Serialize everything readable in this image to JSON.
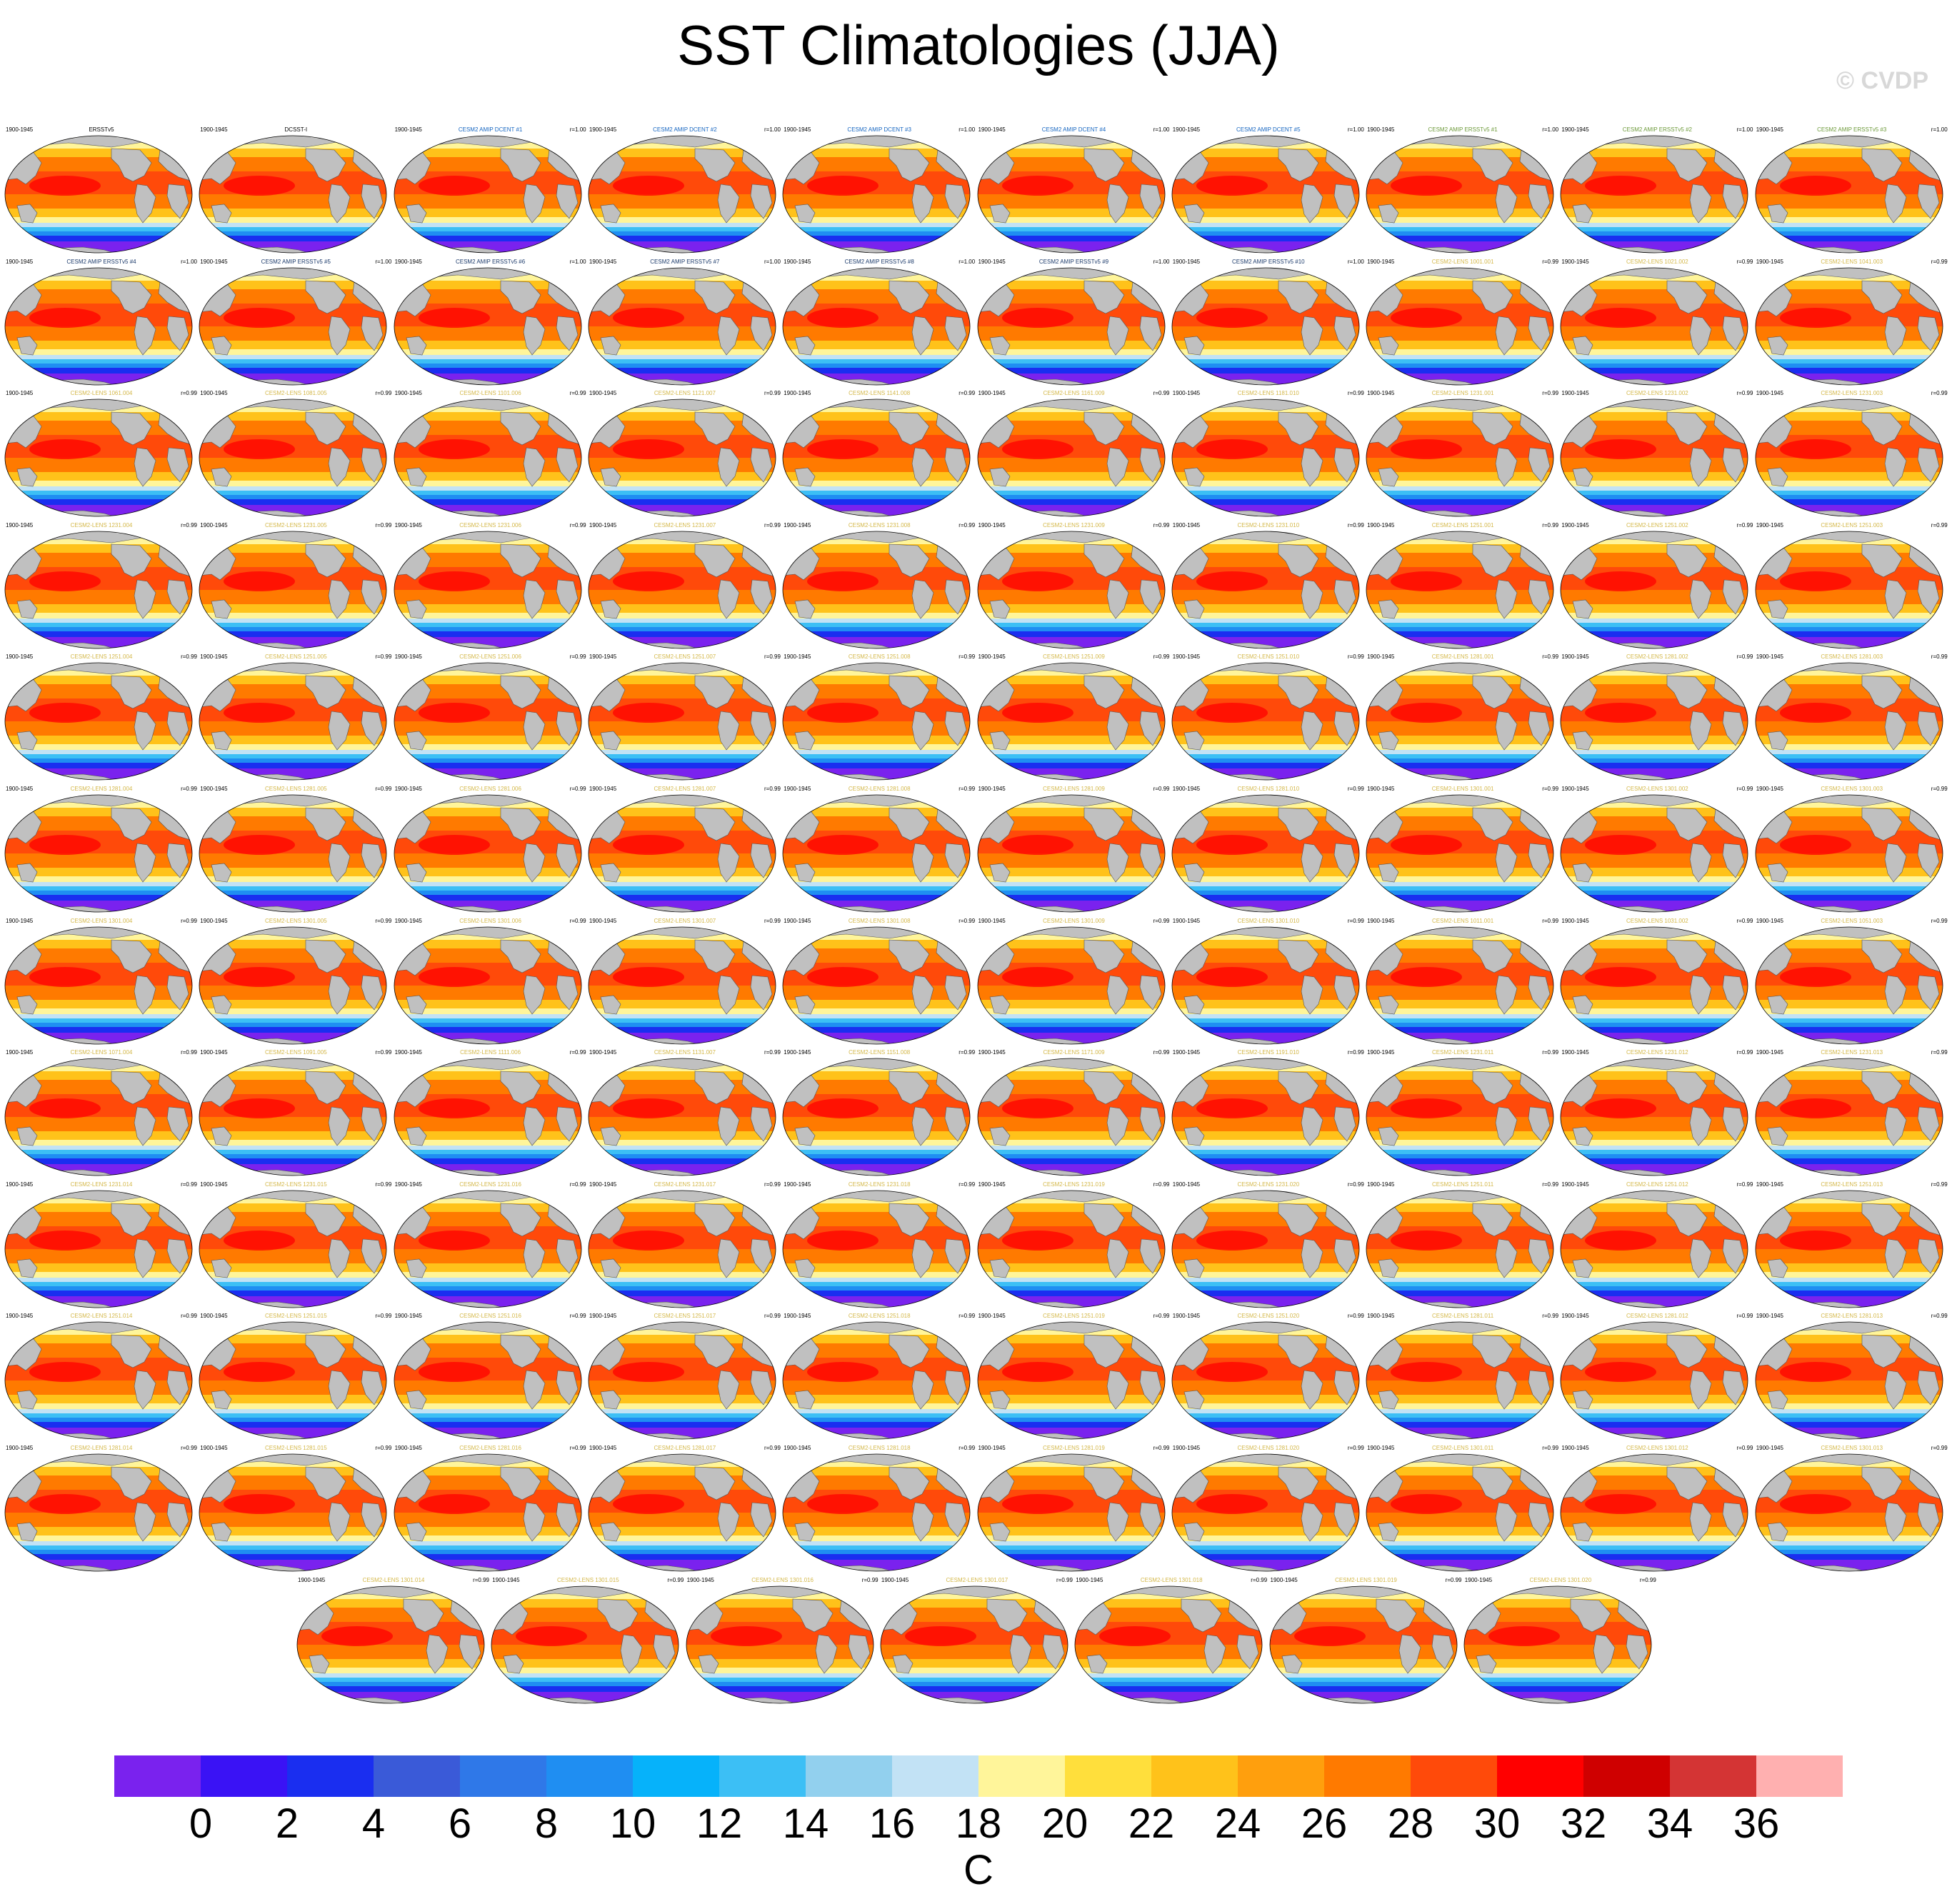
{
  "title": "SST Climatologies (JJA)",
  "watermark": "© CVDP",
  "period": "1900-1945",
  "panels": [
    {
      "name": "ERSSTv5",
      "r": "",
      "color": "#000000"
    },
    {
      "name": "DCSST-I",
      "r": "",
      "color": "#000000"
    },
    {
      "name": "CESM2 AMIP DCENT #1",
      "r": "r=1.00",
      "color": "#1565c0"
    },
    {
      "name": "CESM2 AMIP DCENT #2",
      "r": "r=1.00",
      "color": "#1565c0"
    },
    {
      "name": "CESM2 AMIP DCENT #3",
      "r": "r=1.00",
      "color": "#1565c0"
    },
    {
      "name": "CESM2 AMIP DCENT #4",
      "r": "r=1.00",
      "color": "#1565c0"
    },
    {
      "name": "CESM2 AMIP DCENT #5",
      "r": "r=1.00",
      "color": "#1565c0"
    },
    {
      "name": "CESM2 AMIP ERSSTv5 #1",
      "r": "r=1.00",
      "color": "#6d9a3a"
    },
    {
      "name": "CESM2 AMIP ERSSTv5 #2",
      "r": "r=1.00",
      "color": "#6d9a3a"
    },
    {
      "name": "CESM2 AMIP ERSSTv5 #3",
      "r": "r=1.00",
      "color": "#6d9a3a"
    },
    {
      "name": "CESM2 AMIP ERSSTv5 #4",
      "r": "r=1.00",
      "color": "#1b3a6b"
    },
    {
      "name": "CESM2 AMIP ERSSTv5 #5",
      "r": "r=1.00",
      "color": "#1b3a6b"
    },
    {
      "name": "CESM2 AMIP ERSSTv5 #6",
      "r": "r=1.00",
      "color": "#1b3a6b"
    },
    {
      "name": "CESM2 AMIP ERSSTv5 #7",
      "r": "r=1.00",
      "color": "#1b3a6b"
    },
    {
      "name": "CESM2 AMIP ERSSTv5 #8",
      "r": "r=1.00",
      "color": "#1b3a6b"
    },
    {
      "name": "CESM2 AMIP ERSSTv5 #9",
      "r": "r=1.00",
      "color": "#1b3a6b"
    },
    {
      "name": "CESM2 AMIP ERSSTv5 #10",
      "r": "r=1.00",
      "color": "#1b3a6b"
    },
    {
      "name": "CESM2-LENS 1001.001",
      "r": "r=0.99",
      "color": "#d4b84a"
    },
    {
      "name": "CESM2-LENS 1021.002",
      "r": "r=0.99",
      "color": "#d4b84a"
    },
    {
      "name": "CESM2-LENS 1041.003",
      "r": "r=0.99",
      "color": "#d4b84a"
    },
    {
      "name": "CESM2-LENS 1061.004",
      "r": "r=0.99",
      "color": "#d4b84a"
    },
    {
      "name": "CESM2-LENS 1081.005",
      "r": "r=0.99",
      "color": "#d4b84a"
    },
    {
      "name": "CESM2-LENS 1101.006",
      "r": "r=0.99",
      "color": "#d4b84a"
    },
    {
      "name": "CESM2-LENS 1121.007",
      "r": "r=0.99",
      "color": "#d4b84a"
    },
    {
      "name": "CESM2-LENS 1141.008",
      "r": "r=0.99",
      "color": "#d4b84a"
    },
    {
      "name": "CESM2-LENS 1161.009",
      "r": "r=0.99",
      "color": "#d4b84a"
    },
    {
      "name": "CESM2-LENS 1181.010",
      "r": "r=0.99",
      "color": "#d4b84a"
    },
    {
      "name": "CESM2-LENS 1231.001",
      "r": "r=0.99",
      "color": "#d4b84a"
    },
    {
      "name": "CESM2-LENS 1231.002",
      "r": "r=0.99",
      "color": "#d4b84a"
    },
    {
      "name": "CESM2-LENS 1231.003",
      "r": "r=0.99",
      "color": "#d4b84a"
    },
    {
      "name": "CESM2-LENS 1231.004",
      "r": "r=0.99",
      "color": "#d4b84a"
    },
    {
      "name": "CESM2-LENS 1231.005",
      "r": "r=0.99",
      "color": "#d4b84a"
    },
    {
      "name": "CESM2-LENS 1231.006",
      "r": "r=0.99",
      "color": "#d4b84a"
    },
    {
      "name": "CESM2-LENS 1231.007",
      "r": "r=0.99",
      "color": "#d4b84a"
    },
    {
      "name": "CESM2-LENS 1231.008",
      "r": "r=0.99",
      "color": "#d4b84a"
    },
    {
      "name": "CESM2-LENS 1231.009",
      "r": "r=0.99",
      "color": "#d4b84a"
    },
    {
      "name": "CESM2-LENS 1231.010",
      "r": "r=0.99",
      "color": "#d4b84a"
    },
    {
      "name": "CESM2-LENS 1251.001",
      "r": "r=0.99",
      "color": "#d4b84a"
    },
    {
      "name": "CESM2-LENS 1251.002",
      "r": "r=0.99",
      "color": "#d4b84a"
    },
    {
      "name": "CESM2-LENS 1251.003",
      "r": "r=0.99",
      "color": "#d4b84a"
    },
    {
      "name": "CESM2-LENS 1251.004",
      "r": "r=0.99",
      "color": "#d4b84a"
    },
    {
      "name": "CESM2-LENS 1251.005",
      "r": "r=0.99",
      "color": "#d4b84a"
    },
    {
      "name": "CESM2-LENS 1251.006",
      "r": "r=0.99",
      "color": "#d4b84a"
    },
    {
      "name": "CESM2-LENS 1251.007",
      "r": "r=0.99",
      "color": "#d4b84a"
    },
    {
      "name": "CESM2-LENS 1251.008",
      "r": "r=0.99",
      "color": "#d4b84a"
    },
    {
      "name": "CESM2-LENS 1251.009",
      "r": "r=0.99",
      "color": "#d4b84a"
    },
    {
      "name": "CESM2-LENS 1251.010",
      "r": "r=0.99",
      "color": "#d4b84a"
    },
    {
      "name": "CESM2-LENS 1281.001",
      "r": "r=0.99",
      "color": "#d4b84a"
    },
    {
      "name": "CESM2-LENS 1281.002",
      "r": "r=0.99",
      "color": "#d4b84a"
    },
    {
      "name": "CESM2-LENS 1281.003",
      "r": "r=0.99",
      "color": "#d4b84a"
    },
    {
      "name": "CESM2-LENS 1281.004",
      "r": "r=0.99",
      "color": "#d4b84a"
    },
    {
      "name": "CESM2-LENS 1281.005",
      "r": "r=0.99",
      "color": "#d4b84a"
    },
    {
      "name": "CESM2-LENS 1281.006",
      "r": "r=0.99",
      "color": "#d4b84a"
    },
    {
      "name": "CESM2-LENS 1281.007",
      "r": "r=0.99",
      "color": "#d4b84a"
    },
    {
      "name": "CESM2-LENS 1281.008",
      "r": "r=0.99",
      "color": "#d4b84a"
    },
    {
      "name": "CESM2-LENS 1281.009",
      "r": "r=0.99",
      "color": "#d4b84a"
    },
    {
      "name": "CESM2-LENS 1281.010",
      "r": "r=0.99",
      "color": "#d4b84a"
    },
    {
      "name": "CESM2-LENS 1301.001",
      "r": "r=0.99",
      "color": "#d4b84a"
    },
    {
      "name": "CESM2-LENS 1301.002",
      "r": "r=0.99",
      "color": "#d4b84a"
    },
    {
      "name": "CESM2-LENS 1301.003",
      "r": "r=0.99",
      "color": "#d4b84a"
    },
    {
      "name": "CESM2-LENS 1301.004",
      "r": "r=0.99",
      "color": "#d4b84a"
    },
    {
      "name": "CESM2-LENS 1301.005",
      "r": "r=0.99",
      "color": "#d4b84a"
    },
    {
      "name": "CESM2-LENS 1301.006",
      "r": "r=0.99",
      "color": "#d4b84a"
    },
    {
      "name": "CESM2-LENS 1301.007",
      "r": "r=0.99",
      "color": "#d4b84a"
    },
    {
      "name": "CESM2-LENS 1301.008",
      "r": "r=0.99",
      "color": "#d4b84a"
    },
    {
      "name": "CESM2-LENS 1301.009",
      "r": "r=0.99",
      "color": "#d4b84a"
    },
    {
      "name": "CESM2-LENS 1301.010",
      "r": "r=0.99",
      "color": "#d4b84a"
    },
    {
      "name": "CESM2-LENS 1011.001",
      "r": "r=0.99",
      "color": "#d4b84a"
    },
    {
      "name": "CESM2-LENS 1031.002",
      "r": "r=0.99",
      "color": "#d4b84a"
    },
    {
      "name": "CESM2-LENS 1051.003",
      "r": "r=0.99",
      "color": "#d4b84a"
    },
    {
      "name": "CESM2-LENS 1071.004",
      "r": "r=0.99",
      "color": "#d4b84a"
    },
    {
      "name": "CESM2-LENS 1091.005",
      "r": "r=0.99",
      "color": "#d4b84a"
    },
    {
      "name": "CESM2-LENS 1111.006",
      "r": "r=0.99",
      "color": "#d4b84a"
    },
    {
      "name": "CESM2-LENS 1131.007",
      "r": "r=0.99",
      "color": "#d4b84a"
    },
    {
      "name": "CESM2-LENS 1151.008",
      "r": "r=0.99",
      "color": "#d4b84a"
    },
    {
      "name": "CESM2-LENS 1171.009",
      "r": "r=0.99",
      "color": "#d4b84a"
    },
    {
      "name": "CESM2-LENS 1191.010",
      "r": "r=0.99",
      "color": "#d4b84a"
    },
    {
      "name": "CESM2-LENS 1231.011",
      "r": "r=0.99",
      "color": "#d4b84a"
    },
    {
      "name": "CESM2-LENS 1231.012",
      "r": "r=0.99",
      "color": "#d4b84a"
    },
    {
      "name": "CESM2-LENS 1231.013",
      "r": "r=0.99",
      "color": "#d4b84a"
    },
    {
      "name": "CESM2-LENS 1231.014",
      "r": "r=0.99",
      "color": "#d4b84a"
    },
    {
      "name": "CESM2-LENS 1231.015",
      "r": "r=0.99",
      "color": "#d4b84a"
    },
    {
      "name": "CESM2-LENS 1231.016",
      "r": "r=0.99",
      "color": "#d4b84a"
    },
    {
      "name": "CESM2-LENS 1231.017",
      "r": "r=0.99",
      "color": "#d4b84a"
    },
    {
      "name": "CESM2-LENS 1231.018",
      "r": "r=0.99",
      "color": "#d4b84a"
    },
    {
      "name": "CESM2-LENS 1231.019",
      "r": "r=0.99",
      "color": "#d4b84a"
    },
    {
      "name": "CESM2-LENS 1231.020",
      "r": "r=0.99",
      "color": "#d4b84a"
    },
    {
      "name": "CESM2-LENS 1251.011",
      "r": "r=0.99",
      "color": "#d4b84a"
    },
    {
      "name": "CESM2-LENS 1251.012",
      "r": "r=0.99",
      "color": "#d4b84a"
    },
    {
      "name": "CESM2-LENS 1251.013",
      "r": "r=0.99",
      "color": "#d4b84a"
    },
    {
      "name": "CESM2-LENS 1251.014",
      "r": "r=0.99",
      "color": "#d4b84a"
    },
    {
      "name": "CESM2-LENS 1251.015",
      "r": "r=0.99",
      "color": "#d4b84a"
    },
    {
      "name": "CESM2-LENS 1251.016",
      "r": "r=0.99",
      "color": "#d4b84a"
    },
    {
      "name": "CESM2-LENS 1251.017",
      "r": "r=0.99",
      "color": "#d4b84a"
    },
    {
      "name": "CESM2-LENS 1251.018",
      "r": "r=0.99",
      "color": "#d4b84a"
    },
    {
      "name": "CESM2-LENS 1251.019",
      "r": "r=0.99",
      "color": "#d4b84a"
    },
    {
      "name": "CESM2-LENS 1251.020",
      "r": "r=0.99",
      "color": "#d4b84a"
    },
    {
      "name": "CESM2-LENS 1281.011",
      "r": "r=0.99",
      "color": "#d4b84a"
    },
    {
      "name": "CESM2-LENS 1281.012",
      "r": "r=0.99",
      "color": "#d4b84a"
    },
    {
      "name": "CESM2-LENS 1281.013",
      "r": "r=0.99",
      "color": "#d4b84a"
    },
    {
      "name": "CESM2-LENS 1281.014",
      "r": "r=0.99",
      "color": "#d4b84a"
    },
    {
      "name": "CESM2-LENS 1281.015",
      "r": "r=0.99",
      "color": "#d4b84a"
    },
    {
      "name": "CESM2-LENS 1281.016",
      "r": "r=0.99",
      "color": "#d4b84a"
    },
    {
      "name": "CESM2-LENS 1281.017",
      "r": "r=0.99",
      "color": "#d4b84a"
    },
    {
      "name": "CESM2-LENS 1281.018",
      "r": "r=0.99",
      "color": "#d4b84a"
    },
    {
      "name": "CESM2-LENS 1281.019",
      "r": "r=0.99",
      "color": "#d4b84a"
    },
    {
      "name": "CESM2-LENS 1281.020",
      "r": "r=0.99",
      "color": "#d4b84a"
    },
    {
      "name": "CESM2-LENS 1301.011",
      "r": "r=0.99",
      "color": "#d4b84a"
    },
    {
      "name": "CESM2-LENS 1301.012",
      "r": "r=0.99",
      "color": "#d4b84a"
    },
    {
      "name": "CESM2-LENS 1301.013",
      "r": "r=0.99",
      "color": "#d4b84a"
    },
    {
      "name": "CESM2-LENS 1301.014",
      "r": "r=0.99",
      "color": "#d4b84a"
    },
    {
      "name": "CESM2-LENS 1301.015",
      "r": "r=0.99",
      "color": "#d4b84a"
    },
    {
      "name": "CESM2-LENS 1301.016",
      "r": "r=0.99",
      "color": "#d4b84a"
    },
    {
      "name": "CESM2-LENS 1301.017",
      "r": "r=0.99",
      "color": "#d4b84a"
    },
    {
      "name": "CESM2-LENS 1301.018",
      "r": "r=0.99",
      "color": "#d4b84a"
    },
    {
      "name": "CESM2-LENS 1301.019",
      "r": "r=0.99",
      "color": "#d4b84a"
    },
    {
      "name": "CESM2-LENS 1301.020",
      "r": "r=0.99",
      "color": "#d4b84a"
    }
  ],
  "chart_data": {
    "type": "heatmap",
    "title": "SST Climatologies (JJA)",
    "units": "C",
    "levels": [
      0,
      2,
      4,
      6,
      8,
      10,
      12,
      14,
      16,
      18,
      20,
      22,
      24,
      26,
      28,
      30,
      32,
      34,
      36
    ],
    "colors": [
      "#7a22ee",
      "#3a12f5",
      "#1a2ef0",
      "#3a5ad8",
      "#2f78e8",
      "#1f8ef2",
      "#06b2fa",
      "#3cbff5",
      "#92d0ee",
      "#c2e2f5",
      "#fff59a",
      "#ffdf3c",
      "#ffc21a",
      "#ff9f0d",
      "#ff7a00",
      "#ff4a0a",
      "#ff0000",
      "#cf0000",
      "#d43434",
      "#ffb0b0"
    ],
    "land_color": "#c0c0c0"
  }
}
